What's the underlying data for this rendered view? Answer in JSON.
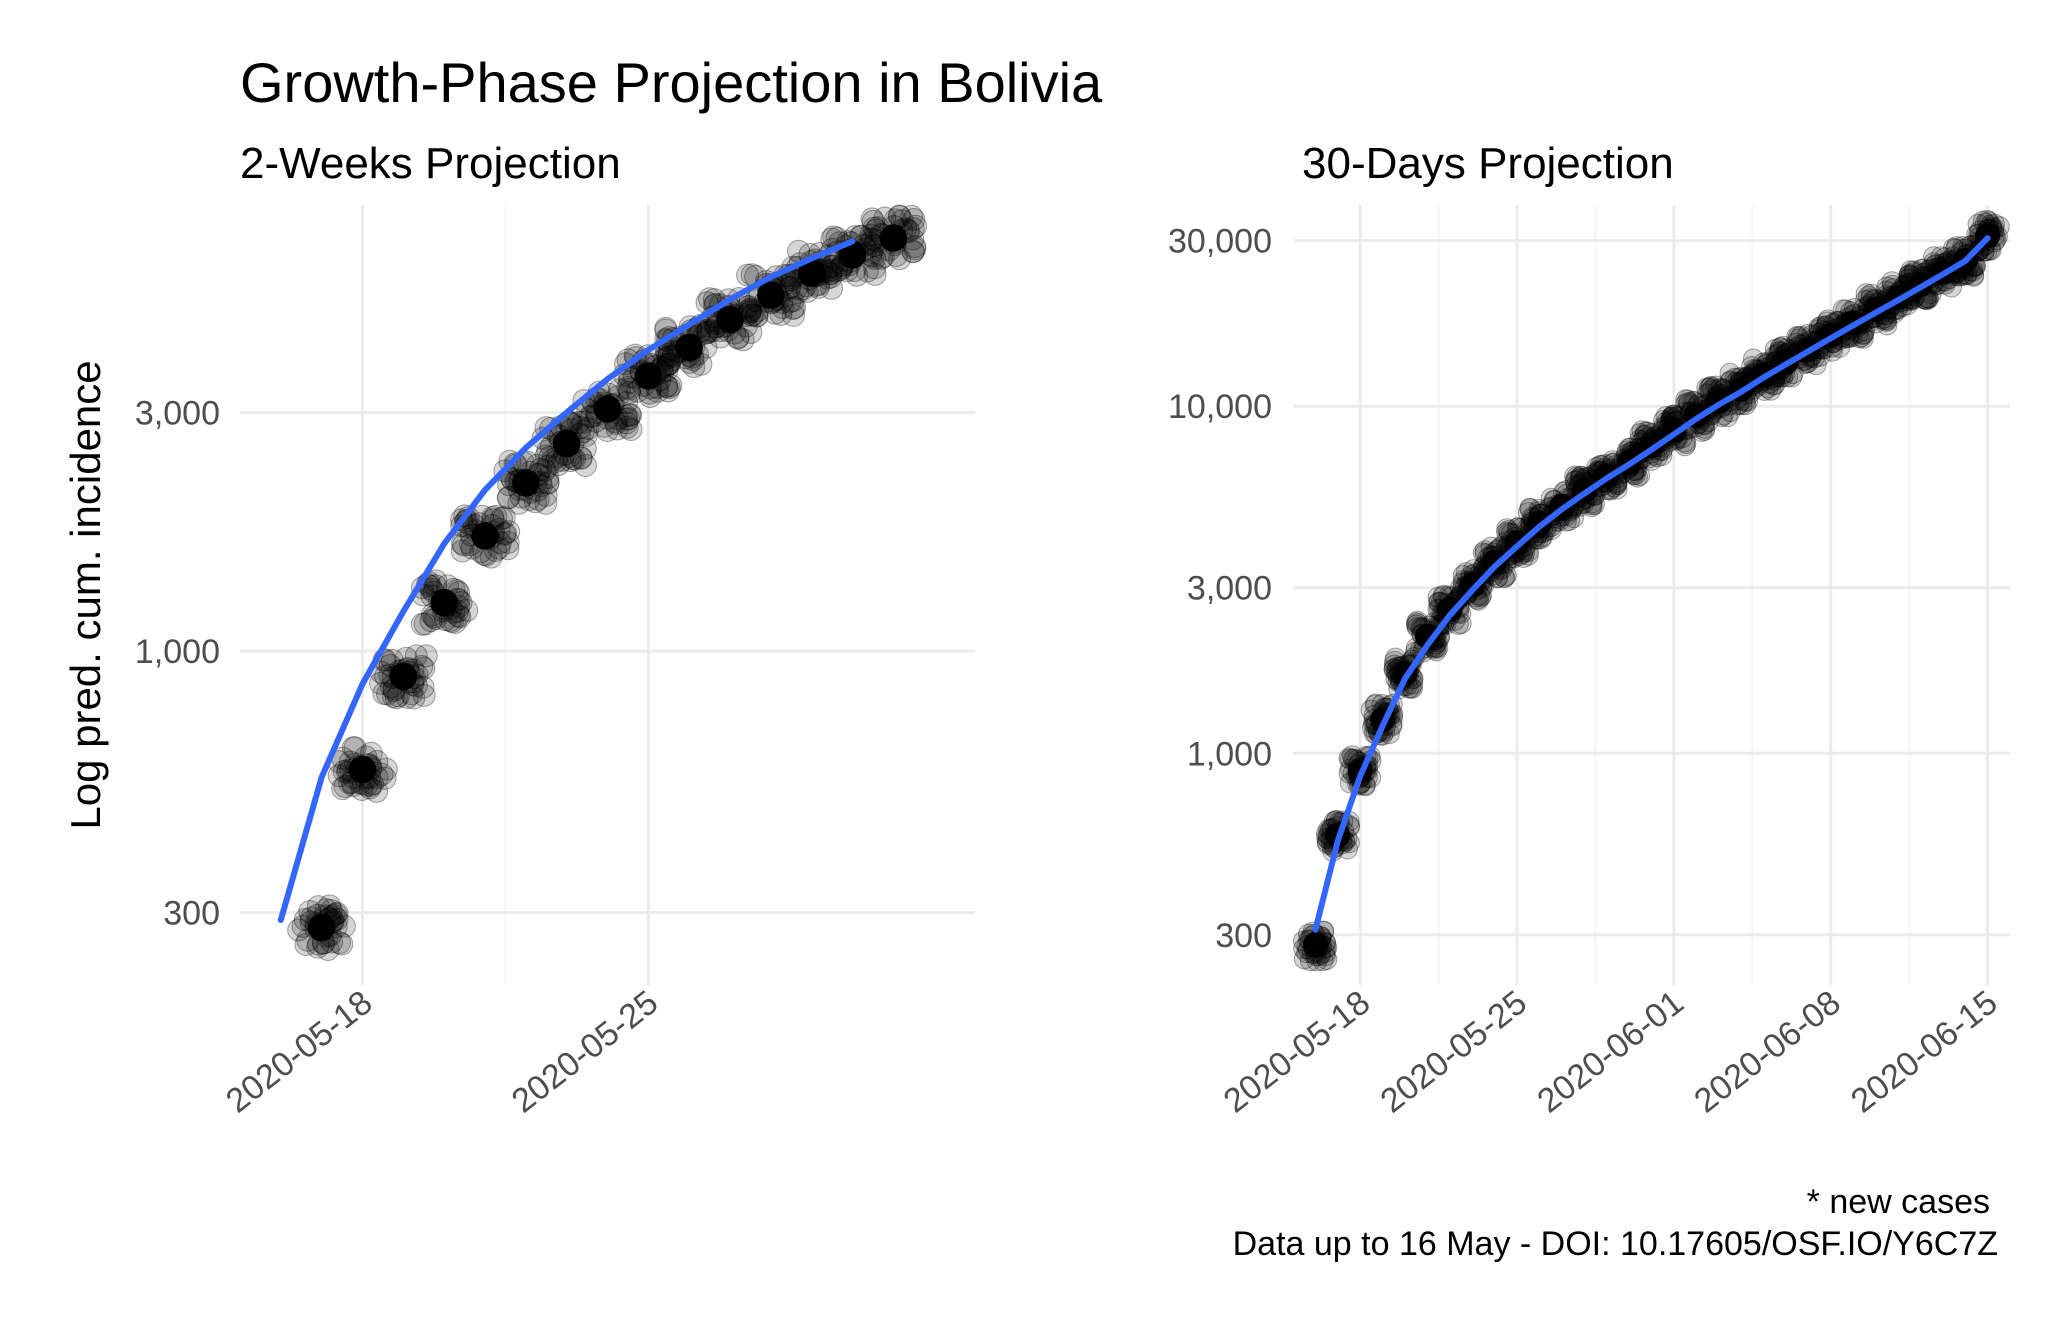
{
  "title": "Growth-Phase Projection in Bolivia",
  "caption_line1": "* new cases",
  "caption_line2": "Data up to 16 May - DOI: 10.17605/OSF.IO/Y6C7Z",
  "colors": {
    "points": "#000000",
    "line": "#3366FF",
    "grid": "#EBEBEB",
    "axis_text": "#4D4D4D"
  },
  "chart_data": [
    {
      "type": "scatter",
      "subtitle": "2-Weeks Projection",
      "ylabel": "Log pred. cum. incidence",
      "y_scale": "log10",
      "ylim": [
        215,
        7800
      ],
      "xlim": [
        "2020-05-15",
        "2020-06-02"
      ],
      "x_ticks": [
        "2020-05-18",
        "2020-05-25"
      ],
      "y_ticks": [
        300,
        1000,
        3000
      ],
      "y_tick_labels": [
        "300",
        "1,000",
        "3,000"
      ],
      "grid": true,
      "points_x": [
        "2020-05-17",
        "2020-05-18",
        "2020-05-19",
        "2020-05-20",
        "2020-05-21",
        "2020-05-22",
        "2020-05-23",
        "2020-05-24",
        "2020-05-25",
        "2020-05-26",
        "2020-05-27",
        "2020-05-28",
        "2020-05-29",
        "2020-05-30",
        "2020-05-31"
      ],
      "points_y": [
        280,
        580,
        890,
        1250,
        1700,
        2170,
        2600,
        3050,
        3550,
        4050,
        4600,
        5150,
        5700,
        6200,
        6700
      ],
      "fit_x": [
        "2020-05-16",
        "2020-05-17",
        "2020-05-18",
        "2020-05-19",
        "2020-05-20",
        "2020-05-21",
        "2020-05-22",
        "2020-05-23",
        "2020-05-24",
        "2020-05-25",
        "2020-05-26",
        "2020-05-27",
        "2020-05-28",
        "2020-05-29",
        "2020-05-30"
      ],
      "fit_y": [
        290,
        560,
        860,
        1200,
        1640,
        2100,
        2550,
        3000,
        3500,
        4000,
        4500,
        5050,
        5600,
        6100,
        6600
      ]
    },
    {
      "type": "scatter",
      "subtitle": "30-Days Projection",
      "ylabel": "",
      "y_scale": "log10",
      "ylim": [
        215,
        38000
      ],
      "xlim": [
        "2020-05-15",
        "2020-06-16"
      ],
      "x_ticks": [
        "2020-05-18",
        "2020-05-25",
        "2020-06-01",
        "2020-06-08",
        "2020-06-15"
      ],
      "y_ticks": [
        300,
        1000,
        3000,
        10000,
        30000
      ],
      "y_tick_labels": [
        "300",
        "1,000",
        "3,000",
        "10,000",
        "30,000"
      ],
      "grid": true,
      "points_x": [
        "2020-05-16",
        "2020-05-17",
        "2020-05-18",
        "2020-05-19",
        "2020-05-20",
        "2020-05-21",
        "2020-05-22",
        "2020-05-23",
        "2020-05-24",
        "2020-05-25",
        "2020-05-26",
        "2020-05-27",
        "2020-05-28",
        "2020-05-29",
        "2020-05-30",
        "2020-05-31",
        "2020-06-01",
        "2020-06-02",
        "2020-06-03",
        "2020-06-04",
        "2020-06-05",
        "2020-06-06",
        "2020-06-07",
        "2020-06-08",
        "2020-06-09",
        "2020-06-10",
        "2020-06-11",
        "2020-06-12",
        "2020-06-13",
        "2020-06-14",
        "2020-06-15"
      ],
      "points_y": [
        280,
        580,
        890,
        1250,
        1700,
        2170,
        2600,
        3050,
        3550,
        4050,
        4600,
        5150,
        5700,
        6300,
        6900,
        7700,
        8500,
        9400,
        10300,
        11200,
        12300,
        13400,
        14600,
        16000,
        17400,
        19000,
        20600,
        22400,
        24300,
        26300,
        31000
      ],
      "fit_x": [
        "2020-05-16",
        "2020-05-17",
        "2020-05-18",
        "2020-05-19",
        "2020-05-20",
        "2020-05-21",
        "2020-05-22",
        "2020-05-23",
        "2020-05-24",
        "2020-05-25",
        "2020-05-26",
        "2020-05-27",
        "2020-05-28",
        "2020-05-29",
        "2020-05-30",
        "2020-05-31",
        "2020-06-01",
        "2020-06-02",
        "2020-06-03",
        "2020-06-04",
        "2020-06-05",
        "2020-06-06",
        "2020-06-07",
        "2020-06-08",
        "2020-06-09",
        "2020-06-10",
        "2020-06-11",
        "2020-06-12",
        "2020-06-13",
        "2020-06-14",
        "2020-06-15"
      ],
      "fit_y": [
        310,
        560,
        860,
        1200,
        1640,
        2050,
        2500,
        2950,
        3450,
        3950,
        4500,
        5050,
        5600,
        6200,
        6800,
        7500,
        8300,
        9200,
        10100,
        11000,
        12100,
        13200,
        14400,
        15700,
        17100,
        18600,
        20200,
        22000,
        24000,
        26200,
        30500
      ]
    }
  ]
}
